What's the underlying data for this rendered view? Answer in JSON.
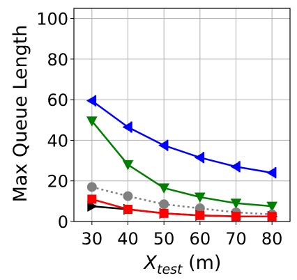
{
  "chart_data": {
    "type": "line",
    "ylabel": "Max Queue Length",
    "xlabel_var": "X",
    "xlabel_sub": "test",
    "xlabel_unit": " (m)",
    "x": [
      30,
      40,
      50,
      60,
      70,
      80
    ],
    "xlim": [
      25,
      85
    ],
    "ylim": [
      0,
      105
    ],
    "xticks": [
      30,
      40,
      50,
      60,
      70,
      80
    ],
    "yticks": [
      0,
      20,
      40,
      60,
      80,
      100
    ],
    "grid": true,
    "series": [
      {
        "values": [
          59.5,
          46.5,
          37.5,
          31.5,
          27,
          24
        ],
        "color": "#0000ff",
        "marker": "left-triangle-bar",
        "linestyle": "solid"
      },
      {
        "values": [
          49.5,
          28,
          16.5,
          12,
          9,
          7.5
        ],
        "color": "#008000",
        "marker": "triangle-down",
        "linestyle": "solid"
      },
      {
        "values": [
          17,
          12.5,
          8.5,
          6.5,
          4.5,
          3.5
        ],
        "color": "#808080",
        "marker": "circle",
        "linestyle": "dotted"
      },
      {
        "values": [
          7.5,
          6,
          4,
          3,
          2.5,
          2.5
        ],
        "color": "#000000",
        "marker": "triangle-right",
        "linestyle": "solid"
      },
      {
        "values": [
          11,
          6,
          4,
          3,
          2.5,
          2.5
        ],
        "color": "#ff0000",
        "marker": "square",
        "linestyle": "solid"
      }
    ]
  }
}
